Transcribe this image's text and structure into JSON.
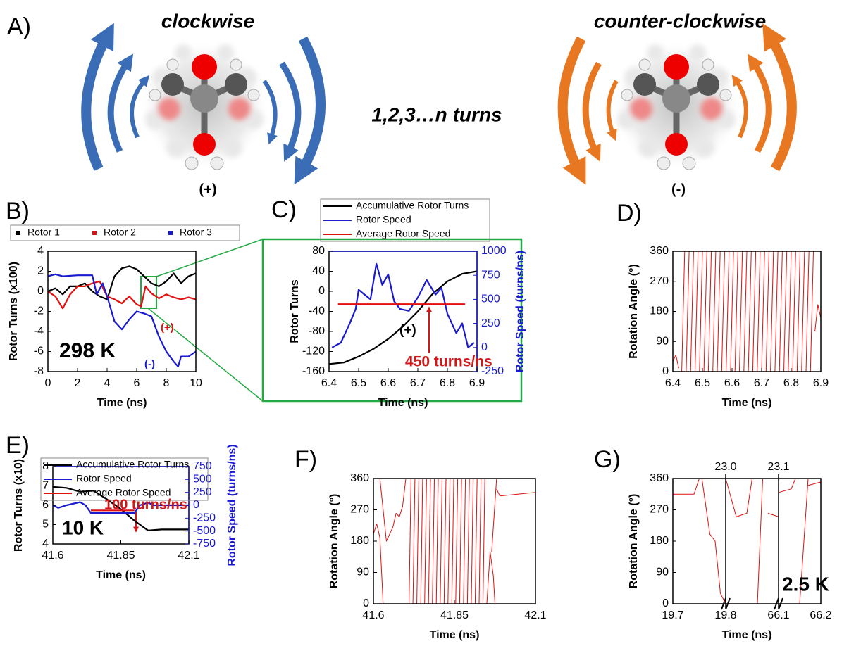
{
  "figure": {
    "panel_a": {
      "label": "A)",
      "left_title": "clockwise",
      "right_title": "counter-clockwise",
      "center_text": "1,2,3…n turns",
      "left_sign": "(+)",
      "right_sign": "(-)"
    }
  },
  "chart_data": [
    {
      "panel": "B)",
      "type": "line",
      "xlabel": "Time (ns)",
      "ylabel": "Rotor Turns (x100)",
      "xlim": [
        0,
        10
      ],
      "xticks": [
        0,
        2,
        4,
        6,
        8,
        10
      ],
      "ylim": [
        -8,
        4
      ],
      "yticks": [
        -8,
        -6,
        -4,
        -2,
        0,
        2,
        4
      ],
      "legend": "top",
      "series": [
        {
          "name": "Rotor 1",
          "color": "#000000",
          "x": [
            0,
            0.5,
            1,
            1.5,
            2,
            2.5,
            3,
            3.5,
            4,
            4.5,
            5,
            5.5,
            6,
            6.5,
            7,
            7.5,
            8,
            8.5,
            9,
            9.5,
            10
          ],
          "values": [
            0,
            0.3,
            -0.3,
            0.5,
            0.5,
            0.8,
            0,
            -0.5,
            -0.8,
            1.5,
            2.3,
            2.5,
            2.2,
            1.5,
            0.8,
            0.5,
            1.0,
            1.8,
            0.8,
            1.5,
            1.8
          ]
        },
        {
          "name": "Rotor 2",
          "color": "#e01010",
          "x": [
            0,
            0.5,
            1,
            1.5,
            2,
            2.5,
            3,
            3.5,
            4,
            4.5,
            5,
            5.5,
            6,
            6.3,
            6.6,
            7,
            7.5,
            8,
            8.5,
            9,
            9.5,
            10
          ],
          "values": [
            0,
            -0.5,
            -1.7,
            -0.3,
            0.5,
            0.5,
            0.8,
            1.0,
            -0.5,
            -0.8,
            -1.2,
            -0.5,
            -1.3,
            -1.5,
            0.5,
            -0.2,
            -0.7,
            -0.3,
            -0.6,
            -0.8,
            -0.6,
            -0.8
          ]
        },
        {
          "name": "Rotor 3",
          "color": "#1a1ad0",
          "x": [
            0,
            0.5,
            1,
            2,
            3,
            3.3,
            3.7,
            4,
            4.5,
            5,
            5.5,
            6,
            6.5,
            7,
            7.5,
            8,
            8.5,
            8.8,
            9,
            9.5,
            10
          ],
          "values": [
            1.5,
            1.7,
            1.5,
            1.6,
            1.6,
            -0.3,
            0.8,
            -0.5,
            -3.0,
            -3.8,
            -2.8,
            -2.0,
            -2.2,
            -2.5,
            -4.5,
            -6.0,
            -7.0,
            -7.5,
            -6.5,
            -6.5,
            -6.0
          ]
        }
      ],
      "annotations": [
        {
          "text": "298 K",
          "color": "#000000"
        },
        {
          "text": "(+)",
          "color": "#e01010"
        },
        {
          "text": "(-)",
          "color": "#1a1ad0"
        }
      ]
    },
    {
      "panel": "C)",
      "type": "line",
      "xlabel": "Time (ns)",
      "ylabel": "Rotor Turns",
      "y2label": "Rotor Speed (turns/ns)",
      "xlim": [
        6.4,
        6.9
      ],
      "xticks": [
        6.4,
        6.5,
        6.6,
        6.7,
        6.8,
        6.9
      ],
      "ylim": [
        -160,
        80
      ],
      "yticks": [
        -160,
        -120,
        -80,
        -40,
        0,
        40,
        80
      ],
      "y2lim": [
        -250,
        1000
      ],
      "y2ticks": [
        -250,
        0,
        250,
        500,
        750,
        1000
      ],
      "legend": "top",
      "series": [
        {
          "name": "Accumulative Rotor Turns",
          "color": "#000000",
          "x": [
            6.4,
            6.45,
            6.5,
            6.55,
            6.6,
            6.65,
            6.7,
            6.75,
            6.8,
            6.85,
            6.9
          ],
          "values": [
            -145,
            -142,
            -130,
            -115,
            -95,
            -70,
            -40,
            -5,
            20,
            35,
            40
          ]
        },
        {
          "name": "Rotor Speed",
          "color": "#1a1ad0",
          "axis": "y2",
          "x": [
            6.41,
            6.44,
            6.47,
            6.49,
            6.5,
            6.52,
            6.54,
            6.56,
            6.58,
            6.6,
            6.62,
            6.64,
            6.67,
            6.7,
            6.73,
            6.76,
            6.78,
            6.8,
            6.83,
            6.85,
            6.87,
            6.89
          ],
          "values": [
            0,
            50,
            250,
            400,
            600,
            550,
            500,
            870,
            650,
            760,
            480,
            400,
            380,
            520,
            700,
            550,
            620,
            350,
            150,
            250,
            0,
            50
          ]
        },
        {
          "name": "Average Rotor Speed",
          "color": "#e01010",
          "axis": "y2",
          "x": [
            6.43,
            6.86
          ],
          "values": [
            450,
            450
          ]
        }
      ],
      "annotations": [
        {
          "text": "(+)",
          "color": "#000000"
        },
        {
          "text": "450 turns/ns",
          "color": "#d01818"
        }
      ]
    },
    {
      "panel": "D)",
      "type": "line",
      "ylabel": "Rotation Angle (°)",
      "xlabel": "Time (ns)",
      "xlim": [
        6.4,
        6.9
      ],
      "xticks": [
        6.4,
        6.5,
        6.6,
        6.7,
        6.8,
        6.9
      ],
      "ylim": [
        0,
        360
      ],
      "yticks": [
        0,
        90,
        180,
        270,
        360
      ],
      "series": [
        {
          "color": "#e01010",
          "x": [
            6.4,
            6.41,
            6.42,
            null,
            6.43,
            6.44,
            null,
            6.445,
            6.455,
            null,
            6.46,
            6.47,
            null,
            6.475,
            6.485,
            null,
            6.49,
            6.5,
            null,
            6.505,
            6.515,
            null,
            6.52,
            6.53,
            null,
            6.535,
            6.545,
            null,
            6.55,
            6.56,
            null,
            6.565,
            6.575,
            null,
            6.58,
            6.59,
            null,
            6.595,
            6.605,
            null,
            6.61,
            6.62,
            null,
            6.625,
            6.635,
            null,
            6.64,
            6.65,
            null,
            6.655,
            6.665,
            null,
            6.67,
            6.68,
            null,
            6.685,
            6.695,
            null,
            6.7,
            6.71,
            null,
            6.715,
            6.725,
            null,
            6.73,
            6.74,
            null,
            6.745,
            6.755,
            null,
            6.76,
            6.77,
            null,
            6.775,
            6.785,
            null,
            6.79,
            6.8,
            null,
            6.805,
            6.815,
            null,
            6.82,
            6.83,
            null,
            6.835,
            6.845,
            null,
            6.85,
            6.86,
            null,
            6.865,
            6.875,
            null,
            6.88,
            6.89,
            6.9
          ],
          "values": [
            30,
            50,
            10,
            null,
            0,
            360,
            null,
            0,
            360,
            null,
            0,
            360,
            null,
            0,
            360,
            null,
            0,
            360,
            null,
            0,
            360,
            null,
            0,
            360,
            null,
            0,
            360,
            null,
            0,
            360,
            null,
            0,
            360,
            null,
            0,
            360,
            null,
            0,
            360,
            null,
            0,
            360,
            null,
            0,
            360,
            null,
            0,
            360,
            null,
            0,
            360,
            null,
            0,
            360,
            null,
            0,
            360,
            null,
            0,
            360,
            null,
            0,
            360,
            null,
            0,
            360,
            null,
            0,
            360,
            null,
            0,
            360,
            null,
            0,
            360,
            null,
            0,
            360,
            null,
            0,
            360,
            null,
            0,
            360,
            null,
            0,
            360,
            null,
            0,
            360,
            null,
            0,
            360,
            null,
            120,
            200,
            160
          ]
        }
      ]
    },
    {
      "panel": "E)",
      "type": "line",
      "xlabel": "Time (ns)",
      "ylabel": "Rotor Turns (x10)",
      "y2label": "Rotor Speed (turns/ns)",
      "xlim": [
        41.6,
        42.1
      ],
      "xticks": [
        41.6,
        41.85,
        42.1
      ],
      "ylim": [
        4,
        8
      ],
      "yticks": [
        4,
        5,
        6,
        7,
        8
      ],
      "y2lim": [
        -750,
        750
      ],
      "y2ticks": [
        -750,
        -500,
        -250,
        0,
        250,
        500,
        750
      ],
      "legend": "top",
      "series": [
        {
          "name": "Accumulative Rotor Turns",
          "color": "#000000",
          "x": [
            41.6,
            41.65,
            41.7,
            41.75,
            41.8,
            41.85,
            41.9,
            41.95,
            42.0,
            42.1
          ],
          "values": [
            6.95,
            6.9,
            6.7,
            6.75,
            6.3,
            5.8,
            5.2,
            4.7,
            4.75,
            4.75
          ]
        },
        {
          "name": "Rotor Speed",
          "color": "#1a1ad0",
          "axis": "y2",
          "x": [
            41.6,
            41.62,
            41.65,
            41.7,
            41.72,
            41.74,
            41.9,
            41.92,
            41.95,
            41.97,
            42.1
          ],
          "values": [
            0,
            -50,
            0,
            60,
            0,
            -150,
            -150,
            0,
            50,
            0,
            0
          ]
        },
        {
          "name": "Average Rotor Speed",
          "color": "#e01010",
          "axis": "y2",
          "x": [
            41.74,
            41.9
          ],
          "values": [
            -100,
            -100
          ]
        }
      ],
      "annotations": [
        {
          "text": "100 turns/ns",
          "color": "#d01818"
        },
        {
          "text": "10 K",
          "color": "#000000"
        }
      ]
    },
    {
      "panel": "F)",
      "type": "line",
      "xlabel": "Time (ns)",
      "ylabel": "Rotation Angle (°)",
      "xlim": [
        41.6,
        42.1
      ],
      "xticks": [
        41.6,
        41.85,
        42.1
      ],
      "ylim": [
        0,
        360
      ],
      "yticks": [
        0,
        90,
        180,
        270,
        360
      ],
      "series": [
        {
          "color": "#e01010",
          "x": [
            41.6,
            41.61,
            41.62,
            41.63,
            null,
            41.62,
            41.64,
            41.66,
            41.67,
            41.68,
            41.69,
            41.7,
            null,
            41.71,
            41.716,
            null,
            41.722,
            41.728,
            null,
            41.734,
            41.74,
            null,
            41.746,
            41.752,
            null,
            41.758,
            41.764,
            null,
            41.77,
            41.776,
            null,
            41.782,
            41.788,
            null,
            41.794,
            41.8,
            null,
            41.806,
            41.812,
            null,
            41.818,
            41.824,
            null,
            41.83,
            41.836,
            null,
            41.842,
            41.848,
            null,
            41.854,
            41.86,
            null,
            41.866,
            41.872,
            null,
            41.878,
            41.884,
            null,
            41.89,
            41.896,
            null,
            41.902,
            41.908,
            null,
            41.914,
            41.92,
            null,
            41.926,
            41.932,
            null,
            41.938,
            41.944,
            null,
            41.95,
            41.96,
            41.97,
            41.975,
            null,
            41.965,
            41.98,
            null,
            41.98,
            41.99,
            42.1
          ],
          "values": [
            200,
            230,
            190,
            0,
            null,
            360,
            180,
            220,
            260,
            250,
            280,
            360,
            null,
            0,
            360,
            null,
            0,
            360,
            null,
            0,
            360,
            null,
            0,
            360,
            null,
            0,
            360,
            null,
            0,
            360,
            null,
            0,
            360,
            null,
            0,
            360,
            null,
            0,
            360,
            null,
            0,
            360,
            null,
            0,
            360,
            null,
            0,
            360,
            null,
            0,
            360,
            null,
            0,
            360,
            null,
            0,
            360,
            null,
            0,
            360,
            null,
            0,
            360,
            null,
            0,
            360,
            null,
            0,
            360,
            null,
            0,
            360,
            null,
            0,
            150,
            80,
            0,
            null,
            150,
            360,
            null,
            330,
            310,
            320
          ]
        }
      ]
    },
    {
      "panel": "G)",
      "type": "line",
      "xlabel": "Time (ns)",
      "ylabel": "Rotation Angle (°)",
      "x_segments": [
        [
          19.7,
          19.8
        ],
        [
          23.0,
          23.1
        ],
        [
          66.1,
          66.2
        ]
      ],
      "xticks": [
        19.7,
        19.8,
        66.1,
        66.2
      ],
      "top_xticks": [
        {
          "value": 23.0,
          "label": "23.0"
        },
        {
          "value": 23.1,
          "label": "23.1"
        }
      ],
      "ylim": [
        0,
        360
      ],
      "yticks": [
        0,
        90,
        180,
        270,
        360
      ],
      "series": [
        {
          "color": "#e01010",
          "x": [
            19.7,
            19.74,
            19.75,
            null,
            19.755,
            19.77,
            19.78,
            19.79,
            19.8,
            null,
            23.0,
            23.02,
            23.04,
            23.05,
            null,
            23.06,
            23.07,
            null,
            23.08,
            23.1,
            null,
            66.1,
            66.13,
            66.14,
            null,
            66.15,
            66.17,
            null,
            66.17,
            66.2
          ],
          "values": [
            315,
            315,
            360,
            null,
            360,
            200,
            180,
            30,
            0,
            null,
            360,
            250,
            260,
            360,
            null,
            0,
            360,
            null,
            260,
            250,
            null,
            320,
            330,
            360,
            null,
            0,
            360,
            null,
            340,
            350
          ]
        }
      ],
      "annotations": [
        {
          "text": "2.5 K",
          "color": "#000000"
        }
      ]
    }
  ]
}
